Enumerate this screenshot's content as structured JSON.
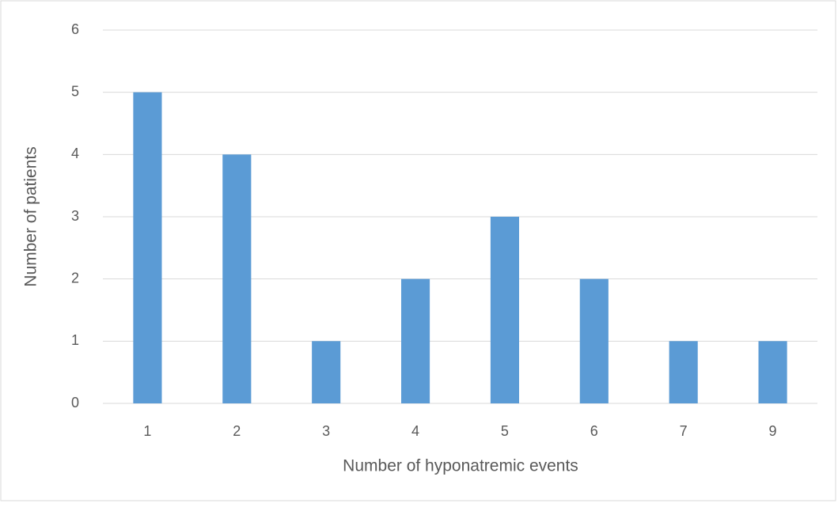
{
  "chart_data": {
    "type": "bar",
    "x_label": "Number of hyponatremic events",
    "y_label": "Number of patients",
    "categories": [
      "1",
      "2",
      "3",
      "4",
      "5",
      "6",
      "7",
      "9"
    ],
    "values": [
      5,
      4,
      1,
      2,
      3,
      2,
      1,
      1
    ],
    "color": "#5b9bd5",
    "ylim": [
      0,
      6
    ],
    "yticks": [
      0,
      1,
      2,
      3,
      4,
      5,
      6
    ],
    "grid": true
  }
}
